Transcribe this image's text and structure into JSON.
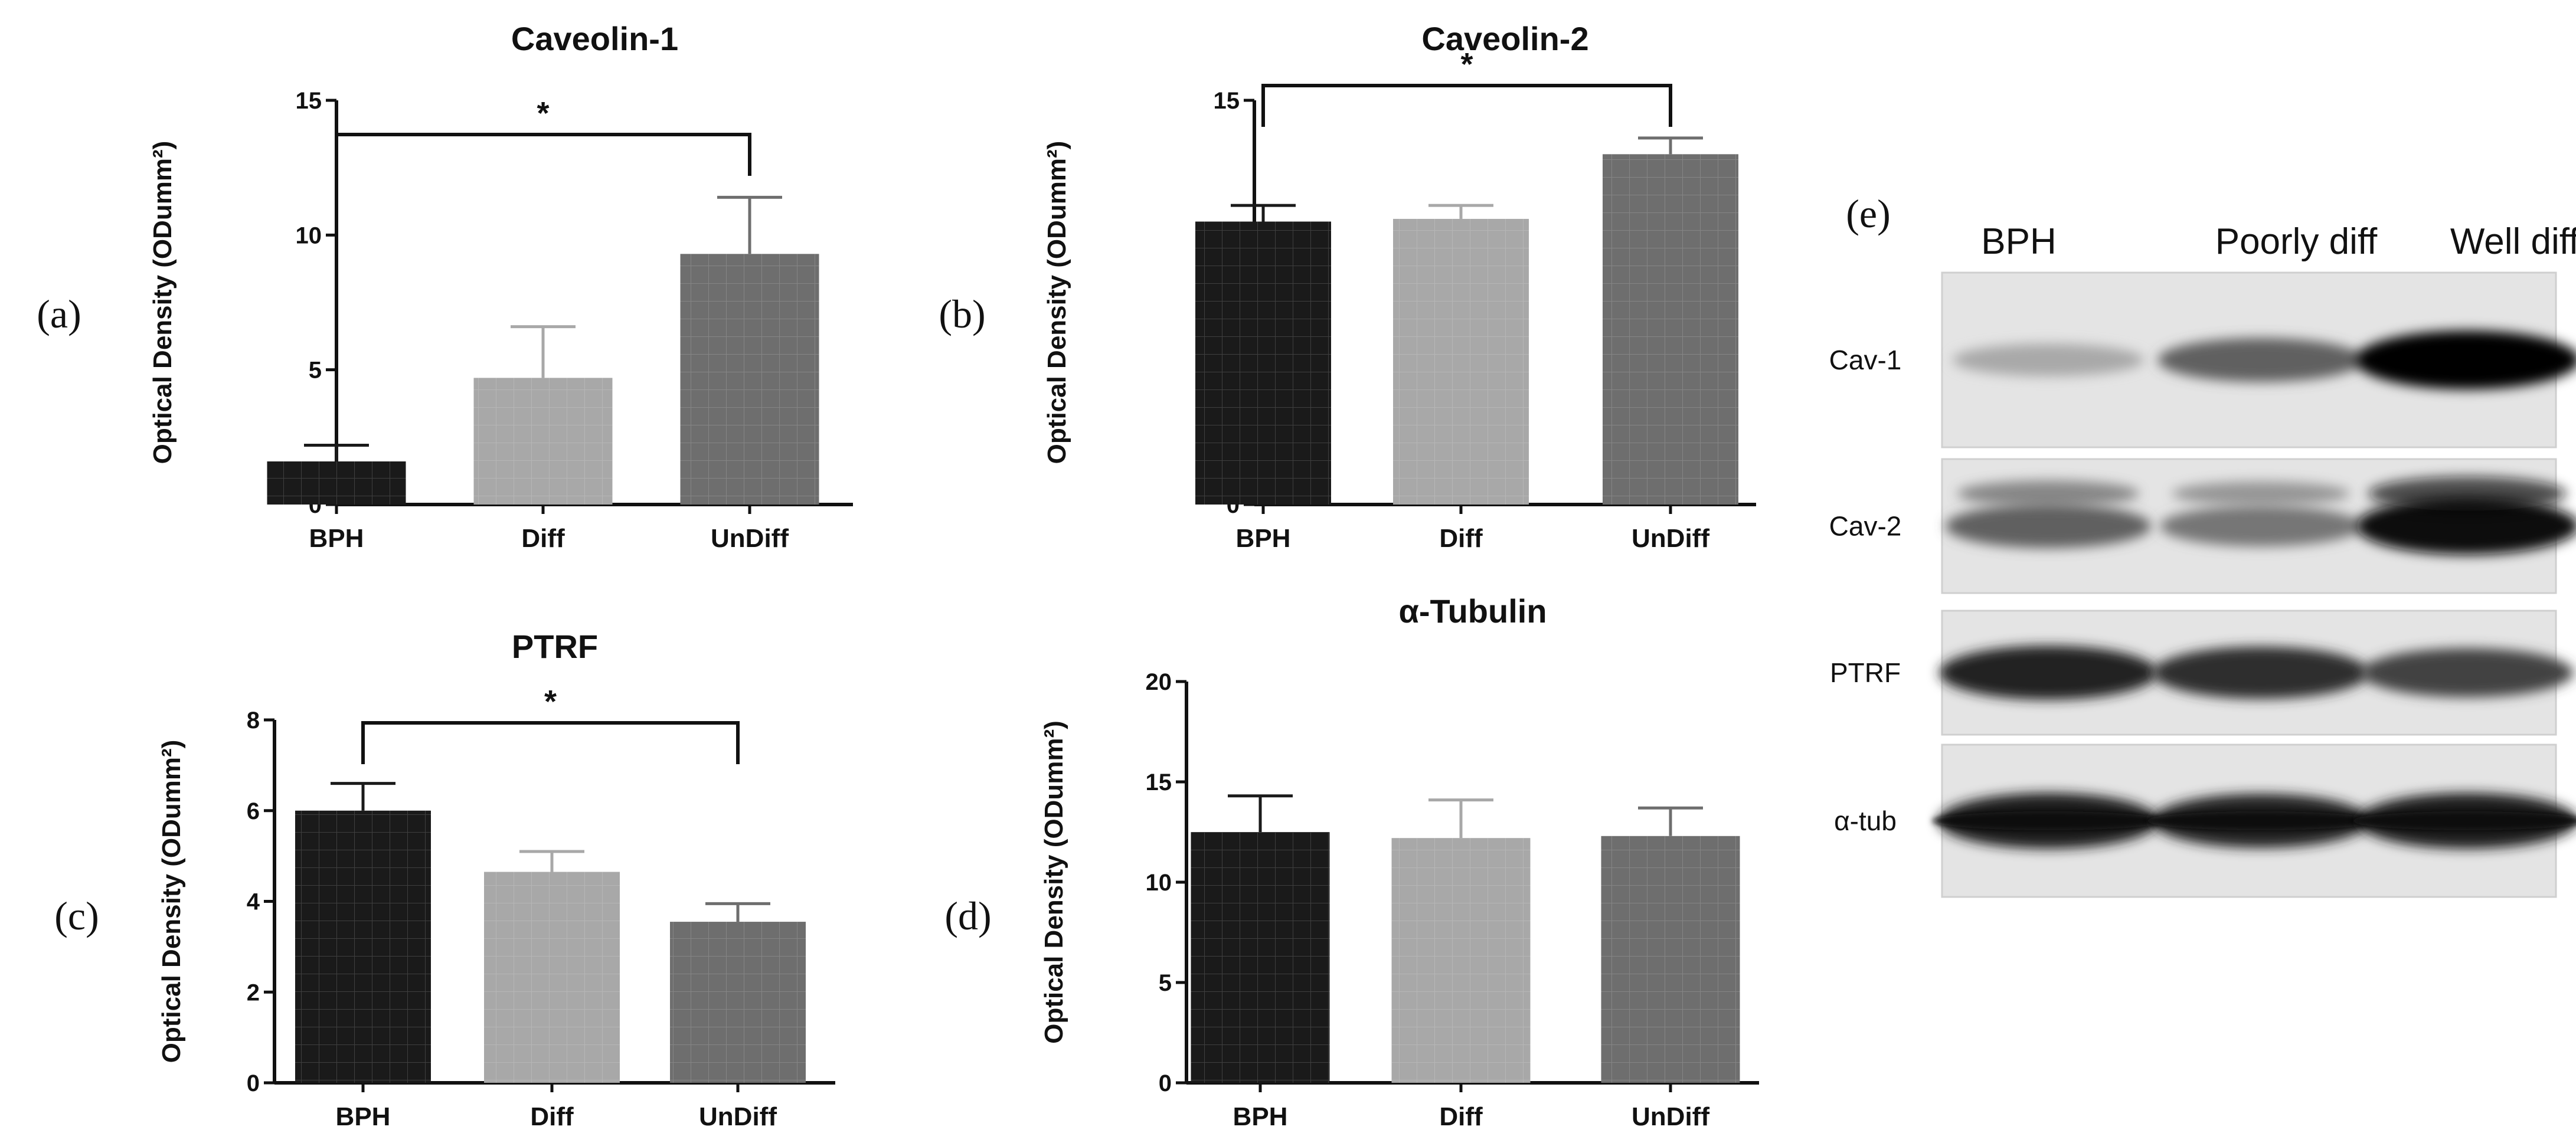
{
  "chart_data": [
    {
      "type": "bar",
      "panel_label": "(a)",
      "title": "Caveolin-1",
      "ylabel": "Optical Density (ODumm²)",
      "categories": [
        "BPH",
        "Diff",
        "UnDiff"
      ],
      "values": [
        1.6,
        4.7,
        9.3
      ],
      "errors": [
        0.6,
        1.9,
        2.1
      ],
      "ylim": [
        0,
        15
      ],
      "yticks": [
        "0",
        "5",
        "10",
        "15"
      ],
      "bar_colors": [
        "#1a1a1a",
        "#a8a8a8",
        "#6e6e6e"
      ],
      "significance": {
        "from": 0,
        "to": 2,
        "label": "*"
      }
    },
    {
      "type": "bar",
      "panel_label": "(b)",
      "title": "Caveolin-2",
      "ylabel": "Optical Density (ODumm²)",
      "categories": [
        "BPH",
        "Diff",
        "UnDiff"
      ],
      "values": [
        10.5,
        10.6,
        13.0
      ],
      "errors": [
        0.6,
        0.5,
        0.6
      ],
      "ylim": [
        0,
        15
      ],
      "yticks": [
        "0",
        "5",
        "10",
        "15"
      ],
      "bar_colors": [
        "#1a1a1a",
        "#a8a8a8",
        "#6e6e6e"
      ],
      "significance": {
        "from": 0,
        "to": 2,
        "label": "*"
      }
    },
    {
      "type": "bar",
      "panel_label": "(c)",
      "title": "PTRF",
      "ylabel": "Optical Density (ODumm²)",
      "categories": [
        "BPH",
        "Diff",
        "UnDiff"
      ],
      "values": [
        6.0,
        4.65,
        3.55
      ],
      "errors": [
        0.6,
        0.45,
        0.4
      ],
      "ylim": [
        0,
        8
      ],
      "yticks": [
        "0",
        "2",
        "4",
        "6",
        "8"
      ],
      "bar_colors": [
        "#1a1a1a",
        "#a8a8a8",
        "#6e6e6e"
      ],
      "significance": {
        "from": 0,
        "to": 2,
        "label": "*"
      }
    },
    {
      "type": "bar",
      "panel_label": "(d)",
      "title": "α-Tubulin",
      "ylabel": "Optical Density (ODumm²)",
      "categories": [
        "BPH",
        "Diff",
        "UnDiff"
      ],
      "values": [
        12.5,
        12.2,
        12.3
      ],
      "errors": [
        1.8,
        1.9,
        1.4
      ],
      "ylim": [
        0,
        20
      ],
      "yticks": [
        "0",
        "5",
        "10",
        "15",
        "20"
      ],
      "bar_colors": [
        "#1a1a1a",
        "#a8a8a8",
        "#6e6e6e"
      ],
      "significance": null
    }
  ],
  "blot": {
    "panel_label": "(e)",
    "columns": [
      "BPH",
      "Poorly diff",
      "Well diff"
    ],
    "rows": [
      {
        "label": "Cav-1",
        "intensity": [
          0.2,
          0.55,
          1.0
        ]
      },
      {
        "label": "Cav-2",
        "intensity": [
          0.55,
          0.45,
          0.95
        ]
      },
      {
        "label": "PTRF",
        "intensity": [
          0.85,
          0.8,
          0.7
        ]
      },
      {
        "label": "α-tub",
        "intensity": [
          0.9,
          0.85,
          0.9
        ]
      }
    ]
  }
}
